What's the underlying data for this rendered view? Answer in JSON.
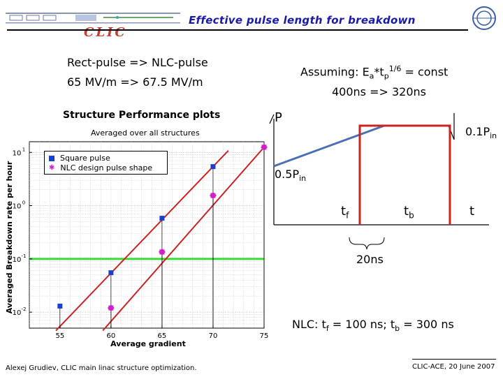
{
  "header": {
    "title": "Effective pulse length for breakdown",
    "logo_text": "CLIC"
  },
  "notes": {
    "rect_line1": "Rect-pulse => NLC-pulse",
    "rect_line2": "65 MV/m => 67.5 MV/m",
    "assume_prefix": "Assuming: E",
    "assume_sub_a": "a",
    "assume_mid": "*t",
    "assume_sub_p": "p",
    "assume_sup": "1/6",
    "assume_suffix": " = const",
    "assume_line2": "400ns => 320ns"
  },
  "pulse_diagram": {
    "p_label": "P",
    "p01_label": "0.1P",
    "p01_sub": "in",
    "p05_label": "0.5P",
    "p05_sub": "in",
    "tf_label": "t",
    "tf_sub": "f",
    "tb_label": "t",
    "tb_sub": "b",
    "t_label": "t",
    "span_label": "20ns",
    "nlc_prefix": "NLC: t",
    "nlc_sub_f": "f",
    "nlc_mid": " = 100 ns; t",
    "nlc_sub_b": "b",
    "nlc_suffix": " = 300 ns",
    "colors": {
      "rect": "#cc2222",
      "nlc": "#4a6fb5"
    }
  },
  "chart_data": {
    "type": "scatter",
    "title": "Structure Performance plots",
    "subtitle": "Averaged over all structures",
    "xlabel": "Average gradient",
    "ylabel": "Averaged Breakdown rate per hour",
    "xlim": [
      52,
      75
    ],
    "ylim_log10": [
      -2.3,
      1.2
    ],
    "y_scale": "log",
    "x_ticks": [
      "55",
      "60",
      "65",
      "70",
      "75"
    ],
    "x_tick_values": [
      55,
      60,
      65,
      70,
      75
    ],
    "y_tick_labels": [
      {
        "base": "10",
        "exp": "1",
        "value_log10": 1
      },
      {
        "base": "10",
        "exp": "0",
        "value_log10": 0
      },
      {
        "base": "10",
        "exp": "-1",
        "value_log10": -1
      },
      {
        "base": "10",
        "exp": "-2",
        "value_log10": -2
      }
    ],
    "grid": true,
    "legend_position": "top-left",
    "series": [
      {
        "name": "Square pulse",
        "color": "#1a3fcc",
        "marker": "square",
        "points": [
          [
            55,
            0.013
          ],
          [
            60,
            0.055
          ],
          [
            65,
            0.58
          ],
          [
            70,
            5.4
          ]
        ],
        "fit_color": "#cc2222",
        "fit": [
          [
            54.6,
            0.0045
          ],
          [
            71.5,
            10.8
          ]
        ]
      },
      {
        "name": "NLC design pulse shape",
        "color": "#d020c8",
        "marker": "star",
        "points": [
          [
            60,
            0.012
          ],
          [
            65,
            0.135
          ],
          [
            70,
            1.55
          ],
          [
            75,
            12.5
          ]
        ],
        "fit_color": "#cc2222",
        "fit": [
          [
            59.2,
            0.0045
          ],
          [
            75,
            12.5
          ]
        ]
      }
    ],
    "threshold": {
      "value": 0.1,
      "color": "#33dd33"
    }
  },
  "footer": {
    "left": "Alexej Grudiev, CLIC main linac structure optimization.",
    "right": "CLIC-ACE, 20 June 2007"
  }
}
